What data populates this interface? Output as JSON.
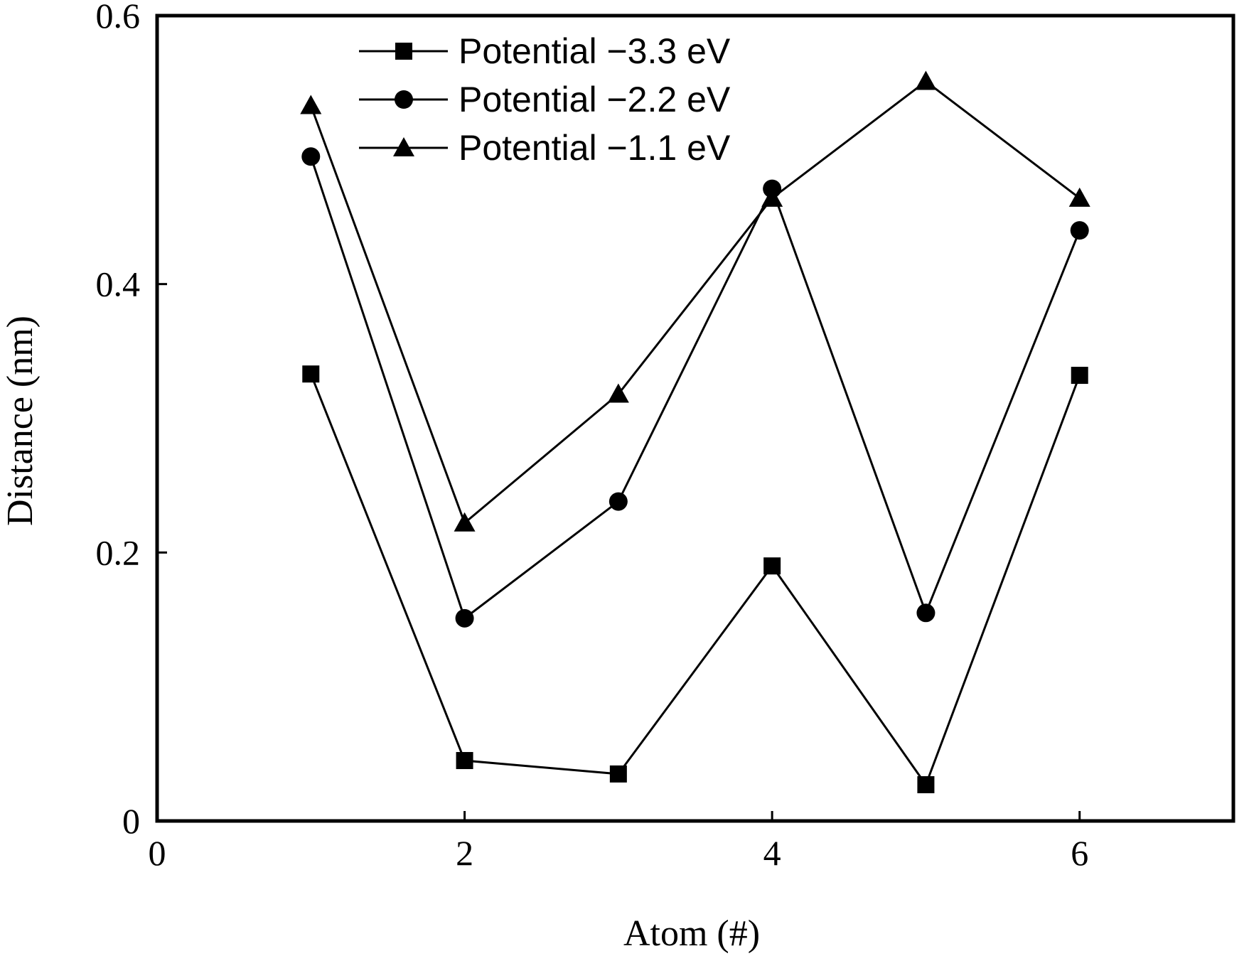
{
  "chart_data": {
    "type": "line",
    "xlabel": "Atom (#)",
    "ylabel": "Distance (nm)",
    "xlim": [
      0,
      7
    ],
    "ylim": [
      0,
      0.6
    ],
    "xticks": [
      0,
      2,
      4,
      6
    ],
    "xtick_labels": [
      "0",
      "2",
      "4",
      "6"
    ],
    "yticks": [
      0,
      0.2,
      0.4,
      0.6
    ],
    "ytick_labels": [
      "0",
      "0.2",
      "0.4",
      "0.6"
    ],
    "grid": false,
    "legend_position": "top-center",
    "series": [
      {
        "name": "Potential −3.3 eV",
        "marker": "square",
        "x": [
          1,
          2,
          3,
          4,
          5,
          6
        ],
        "y": [
          0.333,
          0.045,
          0.035,
          0.19,
          0.027,
          0.332
        ]
      },
      {
        "name": "Potential −2.2 eV",
        "marker": "circle",
        "x": [
          1,
          2,
          3,
          4,
          5,
          6
        ],
        "y": [
          0.495,
          0.151,
          0.238,
          0.471,
          0.155,
          0.44
        ]
      },
      {
        "name": "Potential −1.1 eV",
        "marker": "triangle",
        "x": [
          1,
          2,
          3,
          4,
          5,
          6
        ],
        "y": [
          0.533,
          0.222,
          0.318,
          0.464,
          0.551,
          0.464
        ]
      }
    ]
  }
}
